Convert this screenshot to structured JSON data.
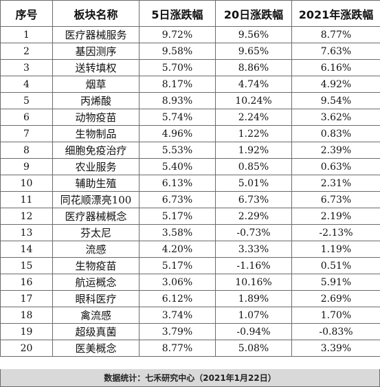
{
  "headers": [
    "序号",
    "板块名称",
    "5日涨跌幅",
    "20日涨跌幅",
    "2021年涨跌幅"
  ],
  "rows": [
    [
      "1",
      "医疗器械服务",
      "9.72%",
      "9.56%",
      "8.77%"
    ],
    [
      "2",
      "基因测序",
      "9.58%",
      "9.65%",
      "7.63%"
    ],
    [
      "3",
      "送转填权",
      "5.70%",
      "8.86%",
      "6.16%"
    ],
    [
      "4",
      "烟草",
      "8.17%",
      "4.74%",
      "4.92%"
    ],
    [
      "5",
      "丙烯酸",
      "8.93%",
      "10.24%",
      "9.54%"
    ],
    [
      "6",
      "动物疫苗",
      "5.74%",
      "2.24%",
      "3.62%"
    ],
    [
      "7",
      "生物制品",
      "4.96%",
      "1.22%",
      "0.83%"
    ],
    [
      "8",
      "细胞免疫治疗",
      "5.53%",
      "1.92%",
      "2.39%"
    ],
    [
      "9",
      "农业服务",
      "5.40%",
      "0.85%",
      "0.63%"
    ],
    [
      "10",
      "辅助生殖",
      "6.13%",
      "5.01%",
      "2.31%"
    ],
    [
      "11",
      "同花顺漂亮100",
      "6.73%",
      "6.73%",
      "6.73%"
    ],
    [
      "12",
      "医疗器械概念",
      "5.17%",
      "2.29%",
      "2.19%"
    ],
    [
      "13",
      "芬太尼",
      "3.58%",
      "-0.73%",
      "-2.13%"
    ],
    [
      "14",
      "流感",
      "4.20%",
      "3.33%",
      "1.19%"
    ],
    [
      "15",
      "生物疫苗",
      "5.17%",
      "-1.16%",
      "0.51%"
    ],
    [
      "16",
      "航运概念",
      "3.06%",
      "10.16%",
      "5.91%"
    ],
    [
      "17",
      "眼科医疗",
      "6.12%",
      "1.89%",
      "2.69%"
    ],
    [
      "18",
      "禽流感",
      "3.74%",
      "1.07%",
      "1.70%"
    ],
    [
      "19",
      "超级真菌",
      "3.79%",
      "-0.94%",
      "-0.83%"
    ],
    [
      "20",
      "医美概念",
      "8.77%",
      "5.08%",
      "3.39%"
    ]
  ],
  "footer": "数据统计：七禾研究中心（2021年1月22日）"
}
